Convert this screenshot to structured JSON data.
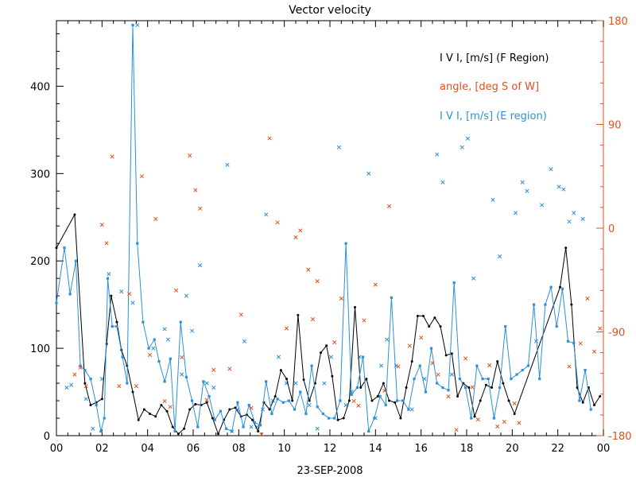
{
  "chart_data": {
    "type": "line",
    "title": "Vector velocity",
    "xlabel": "23-SEP-2008",
    "ylabel": "",
    "xlim": [
      0,
      24
    ],
    "ylim_left": [
      0,
      475
    ],
    "ylim_right": [
      -180,
      180
    ],
    "x_ticks": [
      "00",
      "02",
      "04",
      "06",
      "08",
      "10",
      "12",
      "14",
      "16",
      "18",
      "20",
      "22",
      "00"
    ],
    "y_ticks_left": [
      0,
      100,
      200,
      300,
      400
    ],
    "y_ticks_right": [
      "-180",
      "-90",
      "0",
      "90",
      "180"
    ],
    "legend": {
      "position": "top-right",
      "items": [
        {
          "label": "I V I, [m/s] (F Region)",
          "color": "#000000"
        },
        {
          "label": "angle, [deg S of W]",
          "color": "#e5501f"
        },
        {
          "label": "I V I, [m/s] (E region)",
          "color": "#2b91d9"
        }
      ]
    },
    "series": [
      {
        "name": "I V I, [m/s] (F Region)",
        "color": "#000000",
        "marker": "dot",
        "axis": "left",
        "x": [
          0,
          0.8,
          1.25,
          1.5,
          1.75,
          2.0,
          2.2,
          2.4,
          2.65,
          2.85,
          3.1,
          3.35,
          3.6,
          3.85,
          4.1,
          4.35,
          4.6,
          4.85,
          5.1,
          5.35,
          5.6,
          5.85,
          6.1,
          6.35,
          6.6,
          6.85,
          7.1,
          7.35,
          7.6,
          7.85,
          8.1,
          8.35,
          8.6,
          8.85,
          9.1,
          9.35,
          9.6,
          9.85,
          10.1,
          10.35,
          10.6,
          10.85,
          11.1,
          11.35,
          11.6,
          11.85,
          12.1,
          12.35,
          12.6,
          12.85,
          13.1,
          13.35,
          13.6,
          13.85,
          14.1,
          14.35,
          14.6,
          14.85,
          15.1,
          15.35,
          15.6,
          15.85,
          16.1,
          16.35,
          16.6,
          16.85,
          17.1,
          17.35,
          17.6,
          17.85,
          18.1,
          18.35,
          18.6,
          18.85,
          19.1,
          19.35,
          19.6,
          19.85,
          20.1,
          22.1,
          22.35,
          22.6,
          22.85,
          23.1,
          23.35,
          23.6,
          23.85
        ],
        "y": [
          215,
          253,
          60,
          35,
          38,
          42,
          105,
          160,
          130,
          98,
          80,
          50,
          18,
          30,
          25,
          22,
          35,
          28,
          10,
          2,
          8,
          30,
          36,
          35,
          38,
          20,
          2,
          18,
          30,
          32,
          22,
          24,
          18,
          5,
          38,
          30,
          45,
          75,
          65,
          40,
          138,
          64,
          40,
          60,
          95,
          103,
          68,
          18,
          20,
          40,
          147,
          55,
          65,
          40,
          45,
          60,
          40,
          38,
          20,
          55,
          85,
          137,
          137,
          125,
          135,
          125,
          92,
          94,
          45,
          60,
          55,
          22,
          40,
          58,
          55,
          85,
          60,
          40,
          25,
          170,
          215,
          150,
          55,
          38,
          55,
          35,
          45
        ]
      },
      {
        "name": "I V I, [m/s] (E region)",
        "color": "#2b91d9",
        "marker": "square",
        "axis": "left",
        "x": [
          0,
          0.35,
          0.6,
          0.85,
          1.05,
          1.25,
          1.5,
          1.75,
          1.95,
          2.1,
          2.25,
          2.45,
          2.65,
          2.9,
          3.1,
          3.35,
          3.55,
          3.8,
          4.05,
          4.3,
          4.5,
          4.75,
          5.0,
          5.2,
          5.45,
          5.7,
          5.95,
          6.2,
          6.45,
          6.7,
          6.95,
          7.2,
          7.45,
          7.7,
          7.95,
          8.2,
          8.45,
          8.7,
          8.95,
          9.2,
          9.45,
          9.7,
          9.95,
          10.2,
          10.45,
          10.7,
          10.95,
          11.2,
          11.45,
          11.7,
          11.95,
          12.2,
          12.45,
          12.7,
          12.95,
          13.2,
          13.45,
          13.7,
          13.95,
          14.2,
          14.45,
          14.7,
          14.95,
          15.2,
          15.45,
          15.7,
          15.95,
          16.2,
          16.45,
          16.7,
          16.95,
          17.2,
          17.45,
          17.7,
          17.95,
          18.2,
          18.45,
          18.7,
          18.95,
          19.2,
          19.45,
          19.7,
          19.95,
          20.2,
          20.45,
          20.7,
          20.95,
          21.2,
          21.45,
          21.7,
          21.95,
          22.2,
          22.45,
          22.7,
          22.95,
          23.2,
          23.45
        ],
        "y": [
          152,
          215,
          162,
          200,
          80,
          75,
          65,
          35,
          5,
          20,
          180,
          125,
          125,
          90,
          60,
          470,
          220,
          130,
          100,
          110,
          85,
          62,
          88,
          5,
          130,
          67,
          40,
          10,
          62,
          45,
          18,
          28,
          8,
          5,
          38,
          10,
          35,
          15,
          12,
          62,
          25,
          42,
          38,
          40,
          30,
          50,
          25,
          80,
          33,
          25,
          20,
          20,
          40,
          220,
          47,
          55,
          90,
          5,
          20,
          45,
          35,
          158,
          40,
          40,
          30,
          65,
          80,
          50,
          100,
          60,
          55,
          52,
          175,
          65,
          55,
          20,
          80,
          65,
          65,
          20,
          55,
          125,
          65,
          70,
          75,
          80,
          150,
          65,
          150,
          170,
          125,
          168,
          108,
          106,
          40,
          75,
          30
        ]
      },
      {
        "name": "angle, [deg S of W]",
        "color": "#e5501f",
        "marker": "x",
        "axis": "right",
        "x": [
          0.8,
          1.05,
          1.3,
          2.0,
          2.2,
          2.45,
          2.75,
          3.2,
          3.5,
          3.75,
          4.1,
          4.35,
          4.75,
          5.0,
          5.25,
          5.5,
          5.85,
          6.1,
          6.3,
          6.6,
          6.9,
          7.6,
          8.1,
          8.55,
          9.0,
          9.35,
          9.7,
          10.1,
          10.5,
          10.7,
          11.05,
          11.25,
          11.45,
          12.2,
          12.5,
          13.05,
          13.25,
          13.5,
          14.0,
          14.4,
          14.6,
          15.0,
          15.5,
          16.0,
          16.5,
          16.75,
          17.2,
          17.55,
          17.95,
          18.25,
          18.5,
          19.0,
          19.35,
          19.65,
          20.1,
          20.3,
          22.5,
          23.0,
          23.3,
          23.6,
          23.85
        ],
        "y": [
          -127,
          -121,
          -137,
          3,
          -13,
          62,
          -137,
          -57,
          -137,
          45,
          -110,
          8,
          -150,
          -155,
          -54,
          -112,
          63,
          33,
          17,
          -149,
          -123,
          -122,
          -75,
          -156,
          -179,
          78,
          5,
          -87,
          -8,
          -2,
          -36,
          -79,
          -46,
          -99,
          -61,
          -150,
          -154,
          -80,
          -49,
          -141,
          19,
          -120,
          -102,
          -95,
          -117,
          -127,
          -146,
          -175,
          -113,
          -138,
          -166,
          -119,
          -172,
          -168,
          -152,
          -169,
          -120,
          -100,
          -61,
          -107,
          -87
        ]
      }
    ],
    "scatter_e_angle_extra": {
      "color": "#2b91d9",
      "x": [
        0.45,
        0.65,
        1.3,
        1.6,
        2.0,
        2.3,
        2.85,
        3.35,
        3.55,
        4.25,
        4.75,
        4.9,
        5.5,
        5.7,
        5.95,
        6.3,
        6.6,
        6.9,
        7.5,
        7.7,
        7.95,
        8.25,
        8.55,
        8.8,
        9.05,
        9.2,
        9.5,
        9.75,
        10.1,
        10.5,
        11.1,
        11.45,
        11.75,
        12.05,
        12.4,
        12.7,
        12.95,
        13.3,
        13.7,
        14.0,
        14.25,
        14.5,
        14.9,
        15.6,
        16.15,
        16.7,
        16.95,
        17.35,
        17.8,
        18.05,
        18.3,
        19.15,
        19.45,
        20.15,
        20.45,
        20.65,
        21.05,
        21.3,
        21.7,
        22.05,
        22.25,
        22.5,
        22.7,
        23.1
      ],
      "y": [
        55,
        58,
        42,
        8,
        65,
        185,
        165,
        152,
        470,
        100,
        122,
        110,
        70,
        160,
        120,
        195,
        60,
        55,
        310,
        5,
        30,
        108,
        10,
        10,
        30,
        253,
        40,
        90,
        60,
        60,
        35,
        8,
        60,
        90,
        330,
        35,
        50,
        90,
        300,
        20,
        80,
        110,
        80,
        30,
        65,
        322,
        290,
        70,
        330,
        340,
        180,
        270,
        205,
        255,
        290,
        280,
        108,
        264,
        305,
        285,
        282,
        245,
        255,
        248
      ]
    }
  }
}
